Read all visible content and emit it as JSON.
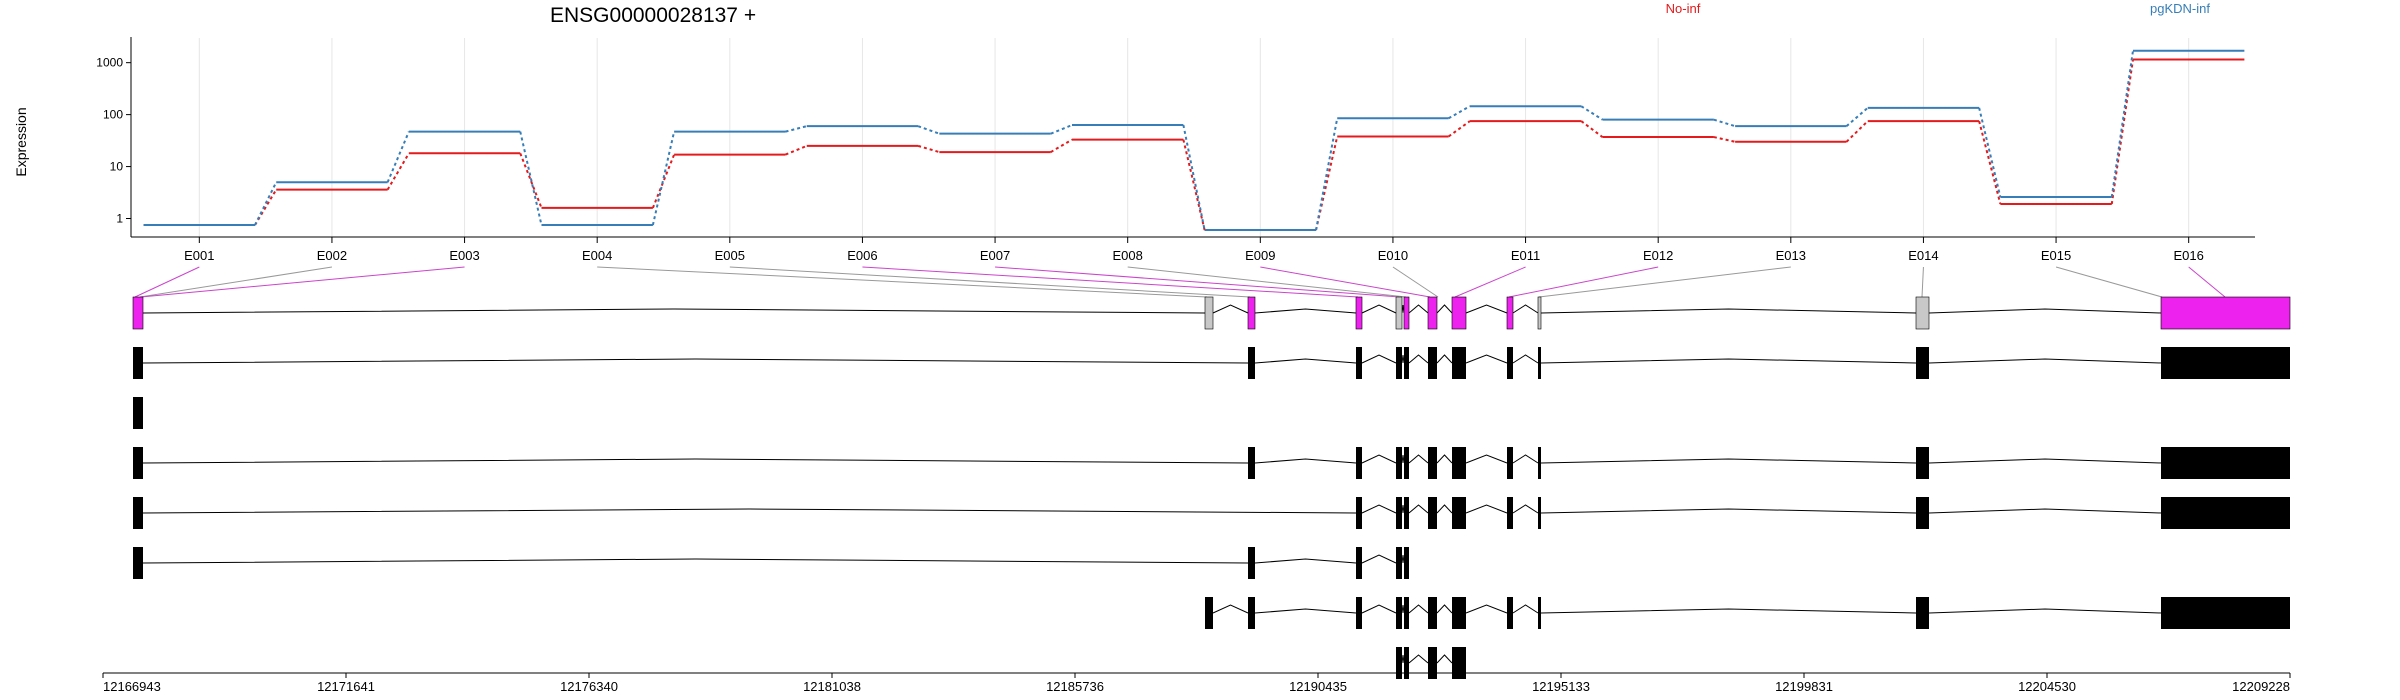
{
  "chart_data": {
    "type": "line",
    "title": "ENSG00000028137 +",
    "ylabel": "Expression",
    "y_scale": "log",
    "ylim": [
      0.55,
      2500
    ],
    "y_ticks": [
      1,
      10,
      100,
      1000
    ],
    "y_tick_labels": [
      "1",
      "10",
      "100",
      "1000"
    ],
    "legend_placement": "top",
    "grid": "vertical",
    "categories": [
      "E001",
      "E002",
      "E003",
      "E004",
      "E005",
      "E006",
      "E007",
      "E008",
      "E009",
      "E010",
      "E011",
      "E012",
      "E013",
      "E014",
      "E015",
      "E016"
    ],
    "series": [
      {
        "name": "No-inf",
        "color": "#e41a1c",
        "values": [
          0.75,
          3.6,
          18,
          1.6,
          17,
          25,
          19,
          33,
          0.6,
          38,
          75,
          37,
          30,
          75,
          1.9,
          1150
        ]
      },
      {
        "name": "pgKDN-inf",
        "color": "#377eb8",
        "values": [
          0.75,
          5,
          47,
          0.75,
          47,
          60,
          43,
          63,
          0.6,
          85,
          145,
          80,
          60,
          135,
          2.6,
          1700
        ]
      }
    ],
    "genomic_axis": {
      "start": 12166943,
      "end": 12209228,
      "tick_labels": [
        "12166943",
        "12171641",
        "12176340",
        "12181038",
        "12185736",
        "12190435",
        "12195133",
        "12199831",
        "12204530",
        "12209228"
      ]
    },
    "exon_highlight_color": "#ee22ee",
    "exon_other_color": "#c8c8c8",
    "transcript_color": "#000000"
  }
}
